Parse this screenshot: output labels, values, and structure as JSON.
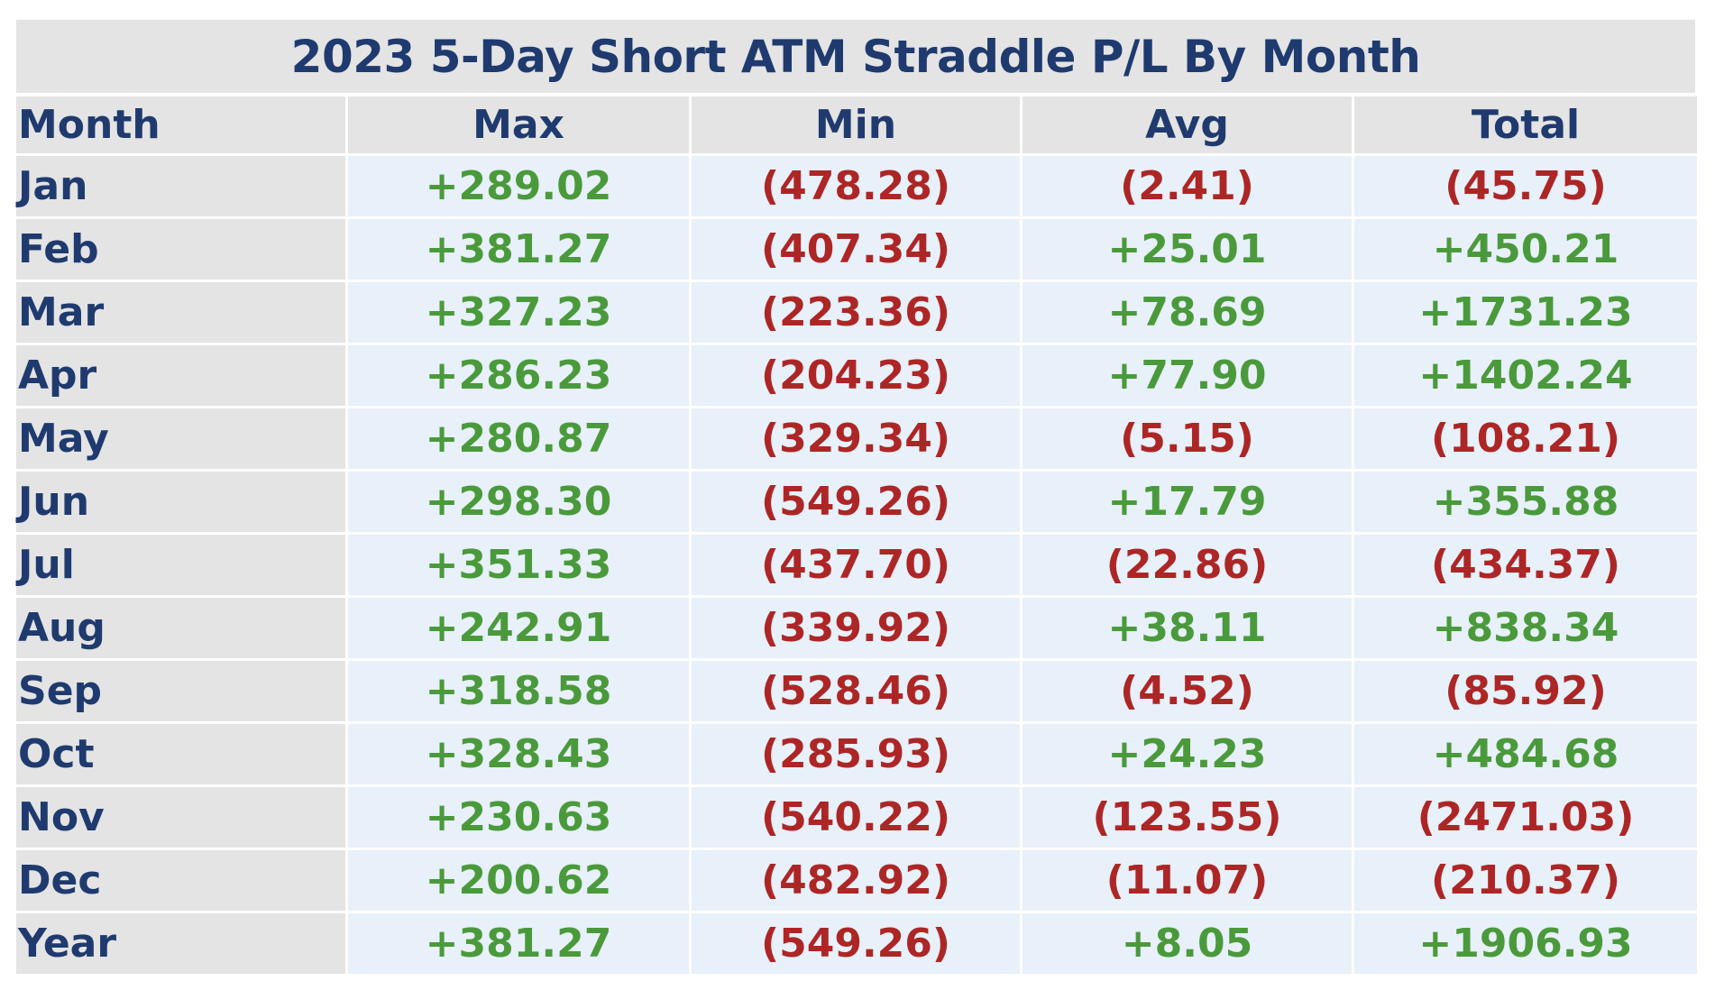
{
  "title": "2023 5-Day Short ATM Straddle P/L By Month",
  "table": {
    "columns": [
      "Month",
      "Max",
      "Min",
      "Avg",
      "Total"
    ],
    "rows": [
      [
        "Jan",
        "+289.02",
        "(478.28)",
        "(2.41)",
        "(45.75)"
      ],
      [
        "Feb",
        "+381.27",
        "(407.34)",
        "+25.01",
        "+450.21"
      ],
      [
        "Mar",
        "+327.23",
        "(223.36)",
        "+78.69",
        "+1731.23"
      ],
      [
        "Apr",
        "+286.23",
        "(204.23)",
        "+77.90",
        "+1402.24"
      ],
      [
        "May",
        "+280.87",
        "(329.34)",
        "(5.15)",
        "(108.21)"
      ],
      [
        "Jun",
        "+298.30",
        "(549.26)",
        "+17.79",
        "+355.88"
      ],
      [
        "Jul",
        "+351.33",
        "(437.70)",
        "(22.86)",
        "(434.37)"
      ],
      [
        "Aug",
        "+242.91",
        "(339.92)",
        "+38.11",
        "+838.34"
      ],
      [
        "Sep",
        "+318.58",
        "(528.46)",
        "(4.52)",
        "(85.92)"
      ],
      [
        "Oct",
        "+328.43",
        "(285.93)",
        "+24.23",
        "+484.68"
      ],
      [
        "Nov",
        "+230.63",
        "(540.22)",
        "(123.55)",
        "(2471.03)"
      ],
      [
        "Dec",
        "+200.62",
        "(482.92)",
        "(11.07)",
        "(210.37)"
      ],
      [
        "Year",
        "+381.27",
        "(549.26)",
        "+8.05",
        "+1906.93"
      ]
    ]
  }
}
